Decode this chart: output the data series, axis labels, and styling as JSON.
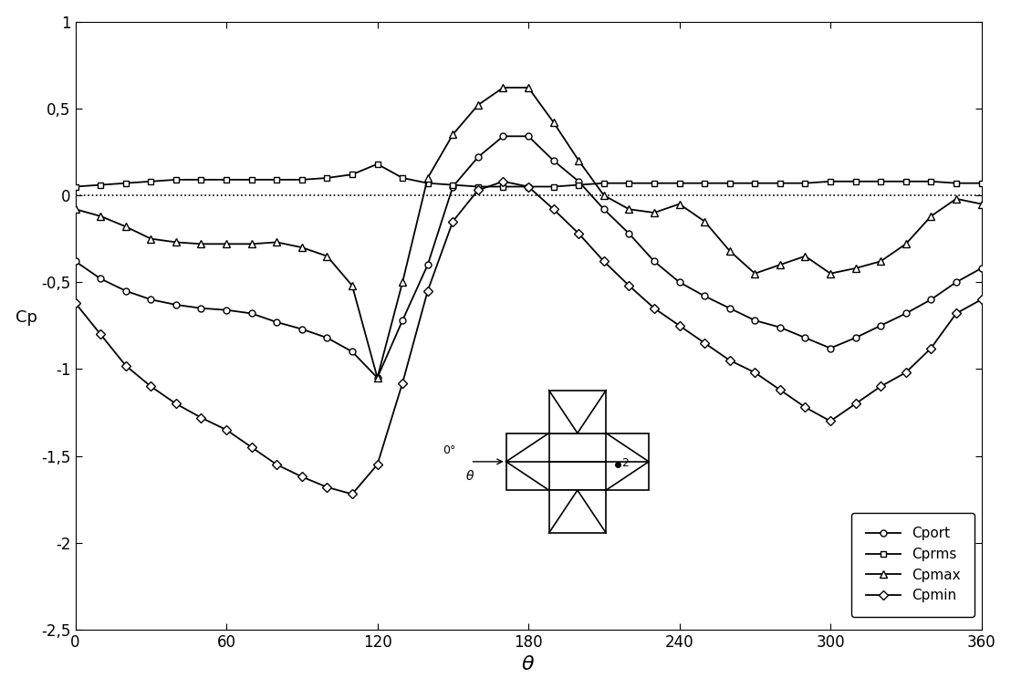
{
  "title": "",
  "xlabel": "$\\theta$",
  "ylabel": "Cp",
  "xlim": [
    0,
    360
  ],
  "ylim": [
    -2.5,
    1
  ],
  "xticks": [
    0,
    60,
    120,
    180,
    240,
    300,
    360
  ],
  "yticks": [
    -2.5,
    -2,
    -1.5,
    -1,
    -0.5,
    0,
    0.5,
    1
  ],
  "theta": [
    0,
    10,
    20,
    30,
    40,
    50,
    60,
    70,
    80,
    90,
    100,
    110,
    120,
    130,
    140,
    150,
    160,
    170,
    180,
    190,
    200,
    210,
    220,
    230,
    240,
    250,
    260,
    270,
    280,
    290,
    300,
    310,
    320,
    330,
    340,
    350,
    360
  ],
  "Cport": [
    -0.38,
    -0.48,
    -0.55,
    -0.6,
    -0.63,
    -0.65,
    -0.66,
    -0.68,
    -0.73,
    -0.77,
    -0.82,
    -0.9,
    -1.05,
    -0.72,
    -0.4,
    0.05,
    0.22,
    0.34,
    0.34,
    0.2,
    0.08,
    -0.08,
    -0.22,
    -0.38,
    -0.5,
    -0.58,
    -0.65,
    -0.72,
    -0.76,
    -0.82,
    -0.88,
    -0.82,
    -0.75,
    -0.68,
    -0.6,
    -0.5,
    -0.42
  ],
  "Cprms": [
    0.05,
    0.06,
    0.07,
    0.08,
    0.09,
    0.09,
    0.09,
    0.09,
    0.09,
    0.09,
    0.1,
    0.12,
    0.18,
    0.1,
    0.07,
    0.06,
    0.05,
    0.05,
    0.05,
    0.05,
    0.06,
    0.07,
    0.07,
    0.07,
    0.07,
    0.07,
    0.07,
    0.07,
    0.07,
    0.07,
    0.08,
    0.08,
    0.08,
    0.08,
    0.08,
    0.07,
    0.07
  ],
  "Cpmax": [
    -0.08,
    -0.12,
    -0.18,
    -0.25,
    -0.27,
    -0.28,
    -0.28,
    -0.28,
    -0.27,
    -0.3,
    -0.35,
    -0.52,
    -1.05,
    -0.5,
    0.1,
    0.35,
    0.52,
    0.62,
    0.62,
    0.42,
    0.2,
    0.0,
    -0.08,
    -0.1,
    -0.05,
    -0.15,
    -0.32,
    -0.45,
    -0.4,
    -0.35,
    -0.45,
    -0.42,
    -0.38,
    -0.28,
    -0.12,
    -0.02,
    -0.05
  ],
  "Cpmin": [
    -0.62,
    -0.8,
    -0.98,
    -1.1,
    -1.2,
    -1.28,
    -1.35,
    -1.45,
    -1.55,
    -1.62,
    -1.68,
    -1.72,
    -1.55,
    -1.08,
    -0.55,
    -0.15,
    0.03,
    0.08,
    0.05,
    -0.08,
    -0.22,
    -0.38,
    -0.52,
    -0.65,
    -0.75,
    -0.85,
    -0.95,
    -1.02,
    -1.12,
    -1.22,
    -1.3,
    -1.2,
    -1.1,
    -1.02,
    -0.88,
    -0.68,
    -0.6
  ]
}
